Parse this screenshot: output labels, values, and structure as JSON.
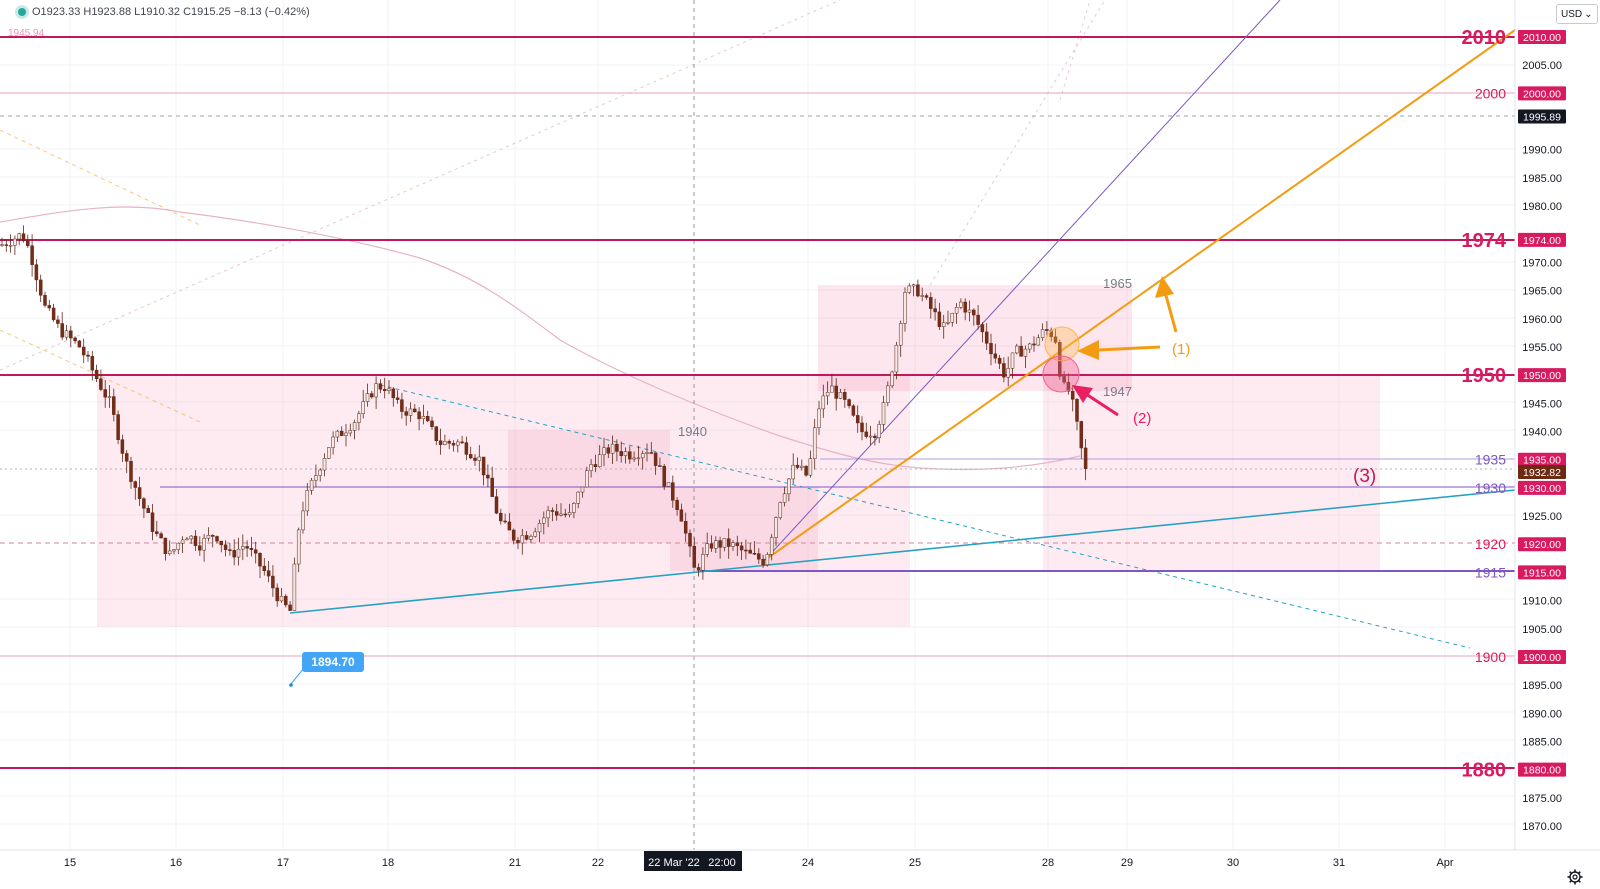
{
  "header": {
    "ohlc_text": "O1923.33  H1923.88  L1910.32  C1915.25  −8.13 (−0.42%)",
    "faded_price": "1945.94",
    "currency": "USD",
    "currency_caret": "⌄"
  },
  "colors": {
    "magenta": "#c2185b",
    "level_label": "#d81b60",
    "orange": "#f39c12",
    "cyan": "#26a1c4",
    "purple": "#7e57c2",
    "zone": "rgba(240,98,146,0.16)",
    "up": "#f3e9e6",
    "down": "#7a2b16",
    "ma": "#e7b3c4"
  },
  "chart_data": {
    "type": "candlestick",
    "price_axis_ticks": [
      "2005.00",
      "1990.00",
      "1985.00",
      "1980.00",
      "1970.00",
      "1965.00",
      "1960.00",
      "1955.00",
      "1945.00",
      "1940.00",
      "1925.00",
      "1910.00",
      "1905.00",
      "1895.00",
      "1890.00",
      "1885.00",
      "1875.00",
      "1870.00"
    ],
    "price_badges": [
      {
        "label": "2010.00",
        "style": "pink"
      },
      {
        "label": "2000.00",
        "style": "pink"
      },
      {
        "label": "1995.89",
        "style": "dark"
      },
      {
        "label": "1974.00",
        "style": "pink"
      },
      {
        "label": "1950.00",
        "style": "pink"
      },
      {
        "label": "1935.00",
        "style": "pink"
      },
      {
        "label": "1932.82",
        "style": "brown"
      },
      {
        "label": "1930.00",
        "style": "pink"
      },
      {
        "label": "1920.00",
        "style": "pink"
      },
      {
        "label": "1915.00",
        "style": "pink"
      },
      {
        "label": "1900.00",
        "style": "pink"
      },
      {
        "label": "1880.00",
        "style": "pink"
      }
    ],
    "horizontal_levels": [
      {
        "price": 2010,
        "label": "2010",
        "big": true
      },
      {
        "price": 2000,
        "label": "2000",
        "big": false
      },
      {
        "price": 1974,
        "label": "1974",
        "big": true
      },
      {
        "price": 1950,
        "label": "1950",
        "big": true
      },
      {
        "price": 1935,
        "label": "1935",
        "big": false
      },
      {
        "price": 1930,
        "label": "1930",
        "big": false
      },
      {
        "price": 1920,
        "label": "1920",
        "big": false
      },
      {
        "price": 1915,
        "label": "1915",
        "big": false
      },
      {
        "price": 1900,
        "label": "1900",
        "big": false
      },
      {
        "price": 1880,
        "label": "1880",
        "big": true
      }
    ],
    "x_axis_labels": [
      "15",
      "16",
      "17",
      "18",
      "21",
      "22",
      "24",
      "25",
      "28",
      "29",
      "30",
      "31",
      "Apr"
    ],
    "crosshair_date": "22 Mar '22",
    "crosshair_time": "22:00",
    "annotations": {
      "low_price_label": "1894.70",
      "zone_1965": "1965",
      "zone_1947": "1947",
      "zone_1940": "1940",
      "marker_1": "(1)",
      "marker_2": "(2)",
      "marker_3": "(3)"
    }
  }
}
